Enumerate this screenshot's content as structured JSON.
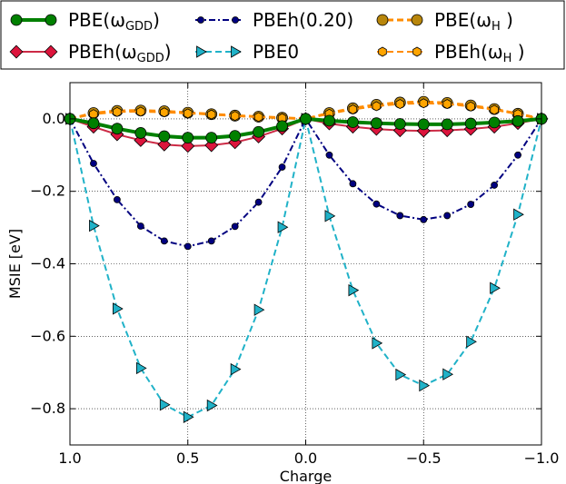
{
  "chart_data": {
    "type": "line",
    "xlabel": "Charge",
    "ylabel": "MSIE [eV]",
    "xlim": [
      1.0,
      -1.0
    ],
    "ylim": [
      -0.9,
      0.1
    ],
    "x_ticks": [
      1.0,
      0.5,
      0.0,
      -0.5,
      -1.0
    ],
    "x_tick_labels": [
      "1.0",
      "0.5",
      "0.0",
      "−0.5",
      "−1.0"
    ],
    "y_ticks": [
      0.0,
      -0.2,
      -0.4,
      -0.6,
      -0.8
    ],
    "y_tick_labels": [
      "0.0",
      "−0.2",
      "−0.4",
      "−0.6",
      "−0.8"
    ],
    "grid": true,
    "legend_position": "top",
    "x": [
      1.0,
      0.9,
      0.8,
      0.7,
      0.6,
      0.5,
      0.4,
      0.3,
      0.2,
      0.1,
      0.0,
      -0.1,
      -0.2,
      -0.3,
      -0.4,
      -0.5,
      -0.6,
      -0.7,
      -0.8,
      -0.9,
      -1.0
    ],
    "series": [
      {
        "legend_main": "PBE(ω",
        "legend_sub": "GDD",
        "legend_tail": ")",
        "color": "#008000",
        "marker": "circle",
        "marker_fill": "#008000",
        "line_style": "solid",
        "line_width": 4,
        "marker_size": 6,
        "values": [
          0.0,
          -0.012,
          -0.027,
          -0.039,
          -0.048,
          -0.052,
          -0.052,
          -0.047,
          -0.036,
          -0.02,
          0.0,
          -0.005,
          -0.009,
          -0.012,
          -0.014,
          -0.015,
          -0.015,
          -0.013,
          -0.01,
          -0.006,
          0.0
        ]
      },
      {
        "legend_main": "PBEh(ω",
        "legend_sub": "GDD",
        "legend_tail": ")",
        "color": "#cc2a45",
        "marker": "diamond",
        "marker_fill": "#dc143c",
        "line_style": "solid",
        "line_width": 2,
        "marker_size": 6,
        "values": [
          0.0,
          -0.022,
          -0.043,
          -0.059,
          -0.071,
          -0.075,
          -0.073,
          -0.065,
          -0.049,
          -0.027,
          0.0,
          -0.013,
          -0.022,
          -0.028,
          -0.032,
          -0.033,
          -0.032,
          -0.028,
          -0.022,
          -0.012,
          0.0
        ]
      },
      {
        "legend_main": "PBEh(0.20)",
        "legend_sub": "",
        "legend_tail": "",
        "color": "#000080",
        "marker": "circle",
        "marker_fill": "#000080",
        "line_style": "dashdot",
        "line_width": 2,
        "marker_size": 3.5,
        "values": [
          0.0,
          -0.123,
          -0.223,
          -0.296,
          -0.337,
          -0.352,
          -0.337,
          -0.297,
          -0.23,
          -0.133,
          0.0,
          -0.1,
          -0.179,
          -0.235,
          -0.267,
          -0.278,
          -0.267,
          -0.236,
          -0.183,
          -0.1,
          0.0
        ]
      },
      {
        "legend_main": "PBE0",
        "legend_sub": "",
        "legend_tail": "",
        "color": "#20b2c8",
        "marker": "triangle-right",
        "marker_fill": "#20b2c8",
        "line_style": "dashed",
        "line_width": 2,
        "marker_size": 6,
        "values": [
          0.0,
          -0.295,
          -0.524,
          -0.688,
          -0.789,
          -0.823,
          -0.791,
          -0.691,
          -0.527,
          -0.299,
          0.0,
          -0.268,
          -0.473,
          -0.619,
          -0.706,
          -0.736,
          -0.705,
          -0.615,
          -0.467,
          -0.264,
          0.0
        ]
      },
      {
        "legend_main": "PBE(ω",
        "legend_sub": "H",
        "legend_tail": " )",
        "color": "#ff8c00",
        "marker": "circle",
        "marker_fill": "#b8860b",
        "line_style": "dashed",
        "line_width": 3,
        "marker_size": 6,
        "values": [
          0.0,
          0.016,
          0.022,
          0.023,
          0.021,
          0.017,
          0.013,
          0.009,
          0.006,
          0.003,
          0.0,
          0.016,
          0.029,
          0.039,
          0.045,
          0.047,
          0.044,
          0.037,
          0.027,
          0.014,
          0.0
        ]
      },
      {
        "legend_main": "PBEh(ω",
        "legend_sub": "H",
        "legend_tail": " )",
        "color": "#ff8c00",
        "marker": "hexagon",
        "marker_fill": "#ffa500",
        "line_style": "dashed",
        "line_width": 2,
        "marker_size": 5,
        "values": [
          0.0,
          0.013,
          0.019,
          0.02,
          0.018,
          0.015,
          0.012,
          0.008,
          0.005,
          0.002,
          0.0,
          0.014,
          0.026,
          0.035,
          0.041,
          0.043,
          0.041,
          0.034,
          0.025,
          0.013,
          0.0
        ]
      }
    ]
  }
}
